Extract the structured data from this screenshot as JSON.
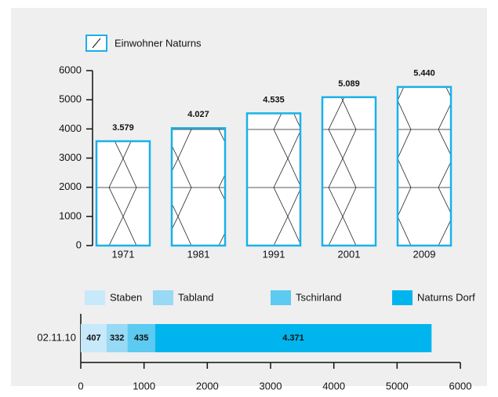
{
  "chart_data": [
    {
      "type": "bar",
      "categories": [
        "1971",
        "1981",
        "1991",
        "2001",
        "2009"
      ],
      "series": [
        {
          "name": "Einwohner Naturns",
          "color": "#19b1ea",
          "values": [
            3579,
            4027,
            4535,
            5089,
            5440
          ],
          "value_labels": [
            "3.579",
            "4.027",
            "4.535",
            "5.089",
            "5.440"
          ]
        }
      ],
      "ylim": [
        0,
        6000
      ],
      "yticks": [
        0,
        1000,
        2000,
        3000,
        4000,
        5000,
        6000
      ]
    },
    {
      "type": "stacked_hbar",
      "categories": [
        "02.11.10"
      ],
      "series": [
        {
          "name": "Staben",
          "color": "#c8e9f9",
          "values": [
            407
          ]
        },
        {
          "name": "Tabland",
          "color": "#98d9f5",
          "values": [
            332
          ]
        },
        {
          "name": "Tschirland",
          "color": "#5ccaf1",
          "values": [
            435
          ]
        },
        {
          "name": "Naturns Dorf",
          "color": "#00b5ed",
          "values": [
            4371
          ],
          "value_labels": [
            "4.371"
          ]
        }
      ],
      "xlim": [
        0,
        6000
      ],
      "xticks": [
        0,
        1000,
        2000,
        3000,
        4000,
        5000,
        6000
      ]
    }
  ]
}
